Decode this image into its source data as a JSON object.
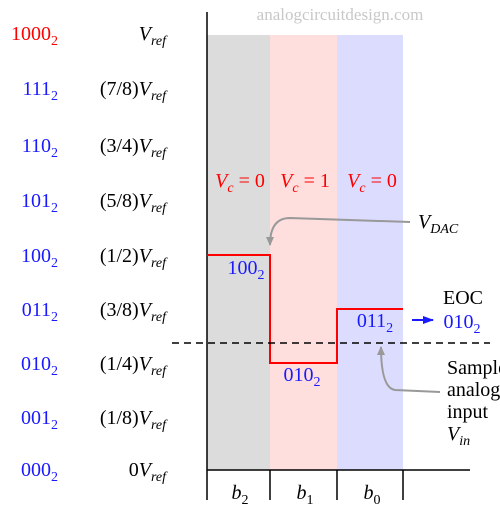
{
  "watermark": "analogcircuitdesign.com",
  "levels": [
    {
      "code": "1000",
      "base": "2",
      "sym": "V",
      "sub": "ref"
    },
    {
      "code": "111",
      "base": "2",
      "coef": "(7/8)",
      "sym": "V",
      "sub": "ref"
    },
    {
      "code": "110",
      "base": "2",
      "coef": "(3/4)",
      "sym": "V",
      "sub": "ref"
    },
    {
      "code": "101",
      "base": "2",
      "coef": "(5/8)",
      "sym": "V",
      "sub": "ref"
    },
    {
      "code": "100",
      "base": "2",
      "coef": "(1/2)",
      "sym": "V",
      "sub": "ref"
    },
    {
      "code": "011",
      "base": "2",
      "coef": "(3/8)",
      "sym": "V",
      "sub": "ref"
    },
    {
      "code": "010",
      "base": "2",
      "coef": "(1/4)",
      "sym": "V",
      "sub": "ref"
    },
    {
      "code": "001",
      "base": "2",
      "coef": "(1/8)",
      "sym": "V",
      "sub": "ref"
    },
    {
      "code": "000",
      "base": "2",
      "coef": "0",
      "sym": "V",
      "sub": "ref"
    }
  ],
  "comparisons": [
    {
      "sym": "V",
      "sub": "c",
      "rest": "= 0"
    },
    {
      "sym": "V",
      "sub": "c",
      "rest": "= 1"
    },
    {
      "sym": "V",
      "sub": "c",
      "rest": "= 0"
    }
  ],
  "bits": [
    {
      "sym": "b",
      "sub": "2"
    },
    {
      "sym": "b",
      "sub": "1"
    },
    {
      "sym": "b",
      "sub": "0"
    }
  ],
  "dac_label": {
    "sym": "V",
    "sub": "DAC"
  },
  "step_codes": [
    {
      "code": "100",
      "base": "2"
    },
    {
      "code": "010",
      "base": "2"
    },
    {
      "code": "011",
      "base": "2"
    }
  ],
  "eoc": {
    "label": "EOC",
    "code": "010",
    "base": "2"
  },
  "input_label": {
    "lines": [
      "Sampled",
      "analog",
      "input"
    ],
    "sym": "V",
    "sub": "in"
  }
}
